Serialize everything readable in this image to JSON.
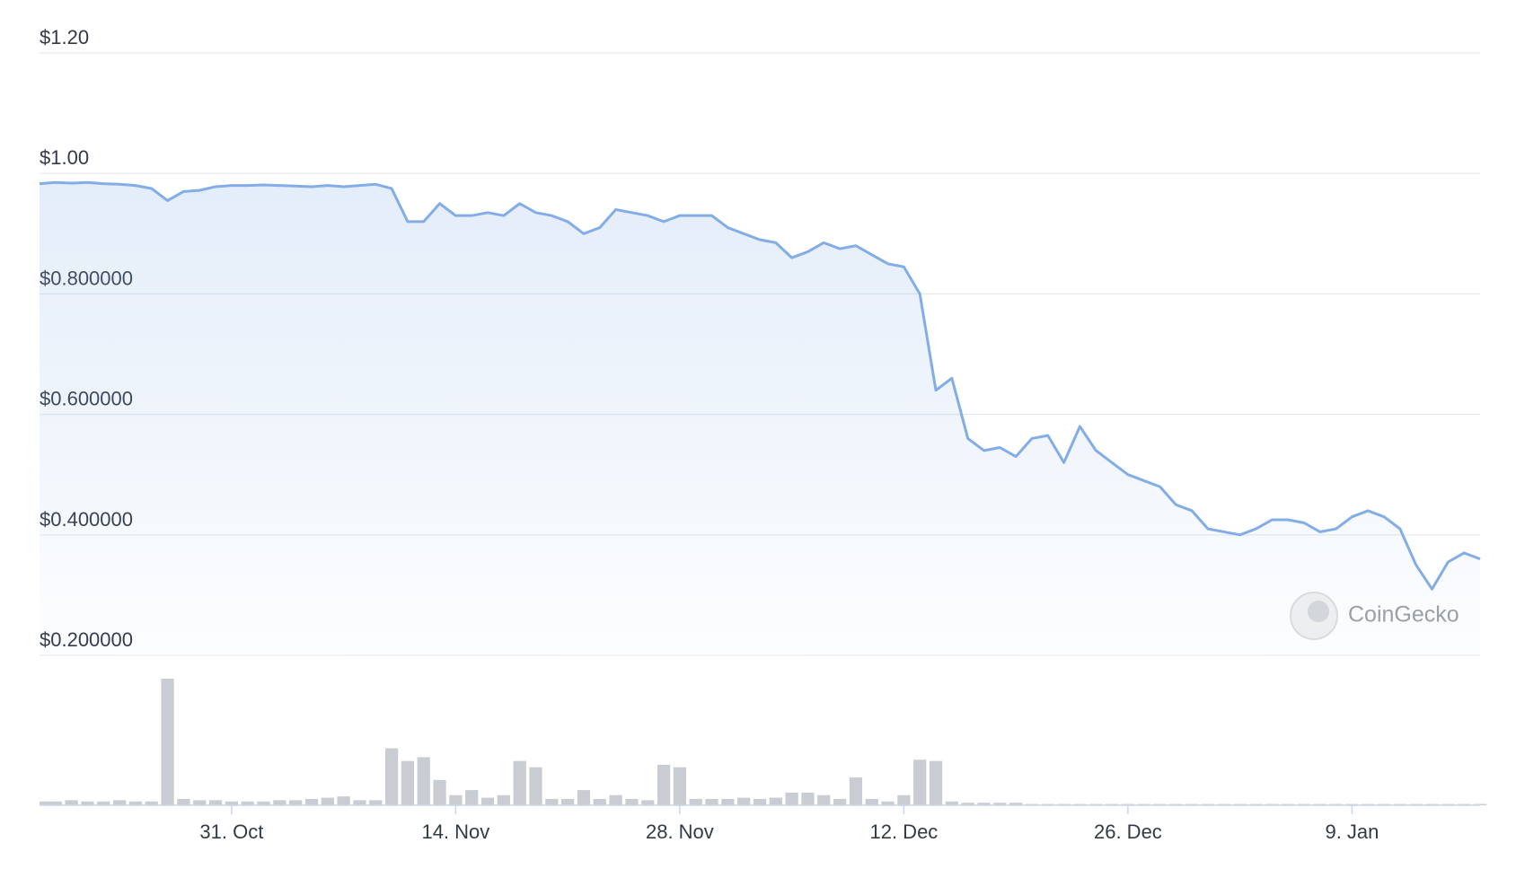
{
  "chart_data": {
    "type": "line",
    "x": [
      "19. Oct",
      "20. Oct",
      "21. Oct",
      "22. Oct",
      "23. Oct",
      "24. Oct",
      "25. Oct",
      "26. Oct",
      "27. Oct",
      "28. Oct",
      "29. Oct",
      "30. Oct",
      "31. Oct",
      "1. Nov",
      "2. Nov",
      "3. Nov",
      "4. Nov",
      "5. Nov",
      "6. Nov",
      "7. Nov",
      "8. Nov",
      "9. Nov",
      "10. Nov",
      "11. Nov",
      "12. Nov",
      "13. Nov",
      "14. Nov",
      "15. Nov",
      "16. Nov",
      "17. Nov",
      "18. Nov",
      "19. Nov",
      "20. Nov",
      "21. Nov",
      "22. Nov",
      "23. Nov",
      "24. Nov",
      "25. Nov",
      "26. Nov",
      "27. Nov",
      "28. Nov",
      "29. Nov",
      "30. Nov",
      "1. Dec",
      "2. Dec",
      "3. Dec",
      "4. Dec",
      "5. Dec",
      "6. Dec",
      "7. Dec",
      "8. Dec",
      "9. Dec",
      "10. Dec",
      "11. Dec",
      "12. Dec",
      "13. Dec",
      "14. Dec",
      "15. Dec",
      "16. Dec",
      "17. Dec",
      "18. Dec",
      "19. Dec",
      "20. Dec",
      "21. Dec",
      "22. Dec",
      "23. Dec",
      "24. Dec",
      "25. Dec",
      "26. Dec",
      "27. Dec",
      "28. Dec",
      "29. Dec",
      "30. Dec",
      "31. Dec",
      "1. Jan",
      "2. Jan",
      "3. Jan",
      "4. Jan",
      "5. Jan",
      "6. Jan",
      "7. Jan",
      "8. Jan",
      "9. Jan",
      "10. Jan",
      "11. Jan",
      "12. Jan",
      "13. Jan",
      "14. Jan",
      "15. Jan",
      "16. Jan",
      "17. Jan"
    ],
    "series": [
      {
        "color": "#83ade6",
        "values": [
          0.983,
          0.985,
          0.984,
          0.985,
          0.983,
          0.982,
          0.98,
          0.975,
          0.955,
          0.97,
          0.972,
          0.978,
          0.98,
          0.98,
          0.981,
          0.98,
          0.979,
          0.978,
          0.98,
          0.978,
          0.98,
          0.982,
          0.975,
          0.92,
          0.92,
          0.95,
          0.93,
          0.93,
          0.935,
          0.93,
          0.95,
          0.935,
          0.93,
          0.92,
          0.9,
          0.91,
          0.94,
          0.935,
          0.93,
          0.92,
          0.93,
          0.93,
          0.93,
          0.91,
          0.9,
          0.89,
          0.885,
          0.86,
          0.87,
          0.885,
          0.875,
          0.88,
          0.865,
          0.85,
          0.845,
          0.8,
          0.64,
          0.66,
          0.56,
          0.54,
          0.545,
          0.53,
          0.56,
          0.565,
          0.52,
          0.58,
          0.54,
          0.52,
          0.5,
          0.49,
          0.48,
          0.45,
          0.44,
          0.41,
          0.405,
          0.4,
          0.41,
          0.425,
          0.425,
          0.42,
          0.405,
          0.41,
          0.43,
          0.44,
          0.43,
          0.41,
          0.35,
          0.31,
          0.355,
          0.37,
          0.36
        ]
      },
      {
        "type": "bar",
        "axis": "y2",
        "color": "#c9cdd3",
        "values": [
          3,
          3,
          4,
          3,
          3,
          4,
          3,
          3,
          100,
          5,
          4,
          4,
          3,
          3,
          3,
          4,
          4,
          5,
          6,
          7,
          4,
          4,
          45,
          35,
          38,
          20,
          8,
          12,
          6,
          8,
          35,
          30,
          5,
          5,
          12,
          5,
          8,
          5,
          4,
          32,
          30,
          5,
          5,
          5,
          6,
          5,
          6,
          10,
          10,
          8,
          5,
          22,
          5,
          3,
          8,
          36,
          35,
          3,
          2,
          2,
          2,
          2,
          1,
          1,
          1,
          1,
          1,
          1,
          1,
          1,
          1,
          1,
          1,
          1,
          1,
          1,
          1,
          1,
          1,
          1,
          1,
          1,
          1,
          1,
          1,
          1,
          1,
          1,
          1,
          1,
          1
        ]
      }
    ],
    "xlim": [
      "19. Oct",
      "17. Jan"
    ],
    "xticks": [
      "31. Oct",
      "14. Nov",
      "28. Nov",
      "12. Dec",
      "26. Dec",
      "9. Jan"
    ],
    "ylim": [
      0.2,
      1.2
    ],
    "yticks": [
      {
        "value": 0.2,
        "label": "$0.200000"
      },
      {
        "value": 0.4,
        "label": "$0.400000"
      },
      {
        "value": 0.6,
        "label": "$0.600000"
      },
      {
        "value": 0.8,
        "label": "$0.800000"
      },
      {
        "value": 1.0,
        "label": "$1.00"
      },
      {
        "value": 1.2,
        "label": "$1.20"
      }
    ],
    "y2lim": [
      0,
      100
    ],
    "grid": true,
    "watermark": "CoinGecko"
  }
}
